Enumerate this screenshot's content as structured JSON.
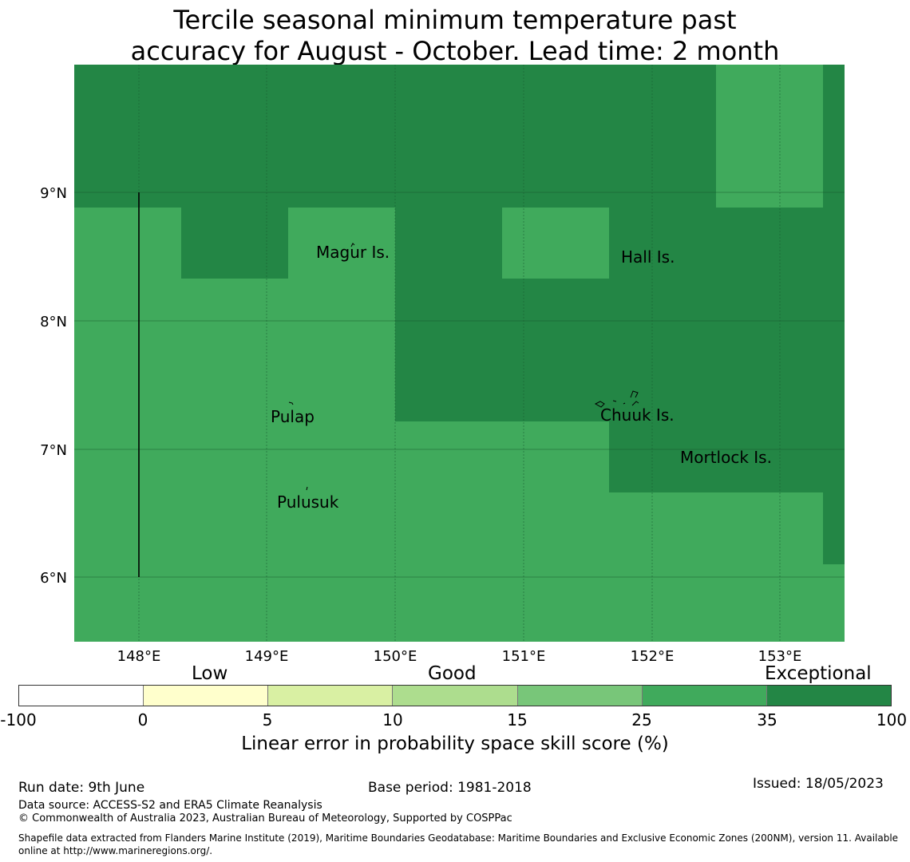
{
  "title_line1": "Tercile seasonal minimum temperature past",
  "title_line2": "accuracy for August - October. Lead time: 2 month",
  "colors": {
    "exceptional": "#238645",
    "good_high": "#40aa5c",
    "grid": "#1a5c30"
  },
  "map": {
    "lon_labels": [
      "148°E",
      "149°E",
      "150°E",
      "151°E",
      "152°E",
      "153°E"
    ],
    "lat_labels": [
      "9°N",
      "8°N",
      "7°N",
      "6°N"
    ],
    "places": [
      {
        "name": "Magur Is."
      },
      {
        "name": "Hall Is."
      },
      {
        "name": "Pulap"
      },
      {
        "name": "Chuuk Is."
      },
      {
        "name": "Mortlock Is."
      },
      {
        "name": "Pulusuk"
      }
    ]
  },
  "legend": {
    "categories": [
      "Low",
      "Good",
      "Exceptional"
    ],
    "ticks": [
      "-100",
      "0",
      "5",
      "10",
      "15",
      "25",
      "35",
      "100"
    ],
    "colors": [
      "#ffffff",
      "#ffffcc",
      "#d9f0a3",
      "#addd8e",
      "#78c679",
      "#40aa5c",
      "#238645"
    ],
    "label": "Linear error in probability space skill score (%)"
  },
  "footer": {
    "run_date": "Run date: 9th June",
    "base_period": "Base period: 1981-2018",
    "issued": "Issued: 18/05/2023",
    "data_source": "Data source: ACCESS-S2 and ERA5 Climate Reanalysis",
    "copyright": "© Commonwealth of Australia 2023, Australian Bureau of Meteorology, Supported by COSPPac",
    "shapefile": "Shapefile data extracted from Flanders Marine Institute (2019), Maritime Boundaries Geodatabase: Maritime Boundaries and Exclusive Economic Zones (200NM), version 11. Available online at http://www.marineregions.org/."
  }
}
